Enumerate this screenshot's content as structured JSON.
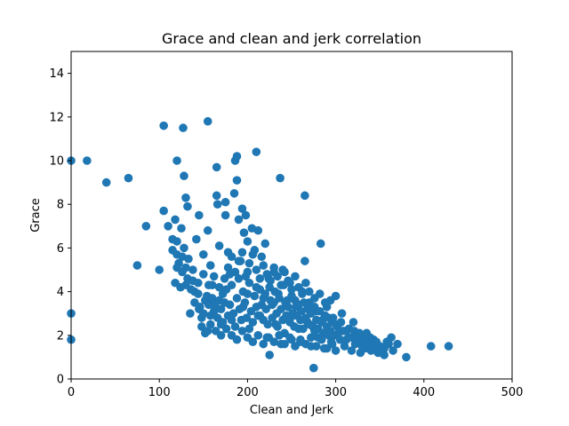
{
  "chart_data": {
    "type": "scatter",
    "title": "Grace and clean and jerk correlation",
    "xlabel": "Clean and Jerk",
    "ylabel": "Grace",
    "xlim": [
      0,
      500
    ],
    "ylim": [
      0,
      15
    ],
    "xticks": [
      0,
      100,
      200,
      300,
      400,
      500
    ],
    "yticks": [
      0,
      2,
      4,
      6,
      8,
      10,
      12,
      14
    ],
    "grid": false,
    "marker_color": "#1f77b4",
    "series": [
      {
        "points": [
          [
            0,
            10.0
          ],
          [
            0,
            3.0
          ],
          [
            0,
            1.8
          ],
          [
            18,
            10.0
          ],
          [
            40,
            9.0
          ],
          [
            65,
            9.2
          ],
          [
            75,
            5.2
          ],
          [
            85,
            7.0
          ],
          [
            100,
            5.0
          ],
          [
            105,
            11.6
          ],
          [
            105,
            7.7
          ],
          [
            110,
            7.0
          ],
          [
            115,
            6.4
          ],
          [
            115,
            5.9
          ],
          [
            118,
            7.3
          ],
          [
            120,
            10.0
          ],
          [
            120,
            6.3
          ],
          [
            120,
            5.7
          ],
          [
            122,
            5.3
          ],
          [
            125,
            6.9
          ],
          [
            127,
            11.5
          ],
          [
            128,
            9.3
          ],
          [
            130,
            8.3
          ],
          [
            132,
            7.9
          ],
          [
            118,
            4.4
          ],
          [
            124,
            4.2
          ],
          [
            126,
            4.9
          ],
          [
            128,
            6.0
          ],
          [
            130,
            5.1
          ],
          [
            133,
            5.5
          ],
          [
            135,
            3.0
          ],
          [
            138,
            4.5
          ],
          [
            140,
            4.0
          ],
          [
            142,
            6.4
          ],
          [
            145,
            7.5
          ],
          [
            145,
            3.2
          ],
          [
            148,
            2.8
          ],
          [
            150,
            5.7
          ],
          [
            152,
            3.6
          ],
          [
            155,
            11.8
          ],
          [
            155,
            6.8
          ],
          [
            155,
            2.2
          ],
          [
            158,
            5.2
          ],
          [
            160,
            4.3
          ],
          [
            162,
            3.1
          ],
          [
            165,
            9.7
          ],
          [
            165,
            8.4
          ],
          [
            166,
            8.0
          ],
          [
            168,
            6.1
          ],
          [
            170,
            2.5
          ],
          [
            172,
            3.9
          ],
          [
            175,
            8.1
          ],
          [
            175,
            7.5
          ],
          [
            178,
            5.8
          ],
          [
            180,
            4.8
          ],
          [
            182,
            2.7
          ],
          [
            185,
            8.5
          ],
          [
            186,
            10.0
          ],
          [
            188,
            10.2
          ],
          [
            188,
            9.1
          ],
          [
            190,
            7.3
          ],
          [
            192,
            5.4
          ],
          [
            194,
            7.8
          ],
          [
            195,
            3.3
          ],
          [
            196,
            6.7
          ],
          [
            198,
            7.5
          ],
          [
            200,
            6.3
          ],
          [
            200,
            4.9
          ],
          [
            202,
            2.3
          ],
          [
            205,
            6.9
          ],
          [
            208,
            5.9
          ],
          [
            210,
            10.4
          ],
          [
            210,
            4.2
          ],
          [
            212,
            6.8
          ],
          [
            214,
            2.9
          ],
          [
            216,
            5.6
          ],
          [
            218,
            3.7
          ],
          [
            220,
            6.2
          ],
          [
            222,
            1.9
          ],
          [
            224,
            4.6
          ],
          [
            225,
            1.1
          ],
          [
            228,
            3.4
          ],
          [
            230,
            4.9
          ],
          [
            232,
            2.5
          ],
          [
            235,
            3.9
          ],
          [
            237,
            9.2
          ],
          [
            238,
            1.6
          ],
          [
            240,
            5.0
          ],
          [
            242,
            2.1
          ],
          [
            245,
            3.6
          ],
          [
            248,
            4.4
          ],
          [
            250,
            1.8
          ],
          [
            252,
            2.9
          ],
          [
            255,
            3.3
          ],
          [
            258,
            2.3
          ],
          [
            260,
            1.7
          ],
          [
            262,
            4.0
          ],
          [
            265,
            8.4
          ],
          [
            265,
            5.4
          ],
          [
            268,
            2.6
          ],
          [
            270,
            3.5
          ],
          [
            272,
            1.5
          ],
          [
            275,
            0.5
          ],
          [
            276,
            2.2
          ],
          [
            278,
            3.1
          ],
          [
            280,
            1.9
          ],
          [
            283,
            6.2
          ],
          [
            285,
            2.7
          ],
          [
            287,
            1.4
          ],
          [
            290,
            3.3
          ],
          [
            292,
            2.0
          ],
          [
            295,
            1.7
          ],
          [
            297,
            2.8
          ],
          [
            300,
            3.8
          ],
          [
            300,
            1.3
          ],
          [
            302,
            2.4
          ],
          [
            305,
            1.8
          ],
          [
            307,
            3.0
          ],
          [
            310,
            1.5
          ],
          [
            312,
            2.2
          ],
          [
            315,
            1.9
          ],
          [
            318,
            1.3
          ],
          [
            320,
            2.6
          ],
          [
            322,
            1.6
          ],
          [
            325,
            2.0
          ],
          [
            328,
            1.2
          ],
          [
            330,
            1.8
          ],
          [
            333,
            1.4
          ],
          [
            335,
            2.1
          ],
          [
            338,
            1.6
          ],
          [
            340,
            1.3
          ],
          [
            343,
            1.8
          ],
          [
            345,
            1.5
          ],
          [
            348,
            1.2
          ],
          [
            352,
            1.4
          ],
          [
            355,
            1.1
          ],
          [
            360,
            1.6
          ],
          [
            363,
            1.9
          ],
          [
            365,
            1.3
          ],
          [
            370,
            1.6
          ],
          [
            380,
            1.0
          ],
          [
            408,
            1.5
          ],
          [
            428,
            1.5
          ],
          [
            130,
            4.3
          ],
          [
            136,
            4.1
          ],
          [
            140,
            3.5
          ],
          [
            144,
            3.9
          ],
          [
            146,
            3.3
          ],
          [
            150,
            3.0
          ],
          [
            154,
            3.8
          ],
          [
            156,
            3.4
          ],
          [
            158,
            2.9
          ],
          [
            160,
            3.7
          ],
          [
            163,
            3.4
          ],
          [
            166,
            2.8
          ],
          [
            168,
            3.6
          ],
          [
            170,
            3.2
          ],
          [
            172,
            2.6
          ],
          [
            174,
            3.5
          ],
          [
            176,
            4.1
          ],
          [
            178,
            2.9
          ],
          [
            180,
            3.4
          ],
          [
            182,
            4.3
          ],
          [
            184,
            3.0
          ],
          [
            186,
            2.4
          ],
          [
            188,
            3.7
          ],
          [
            190,
            4.6
          ],
          [
            191,
            3.2
          ],
          [
            193,
            2.7
          ],
          [
            195,
            4.0
          ],
          [
            197,
            3.5
          ],
          [
            199,
            2.8
          ],
          [
            200,
            3.9
          ],
          [
            202,
            4.4
          ],
          [
            204,
            3.1
          ],
          [
            206,
            2.6
          ],
          [
            208,
            3.8
          ],
          [
            210,
            3.3
          ],
          [
            212,
            2.9
          ],
          [
            214,
            4.1
          ],
          [
            216,
            3.4
          ],
          [
            218,
            2.7
          ],
          [
            220,
            3.9
          ],
          [
            221,
            3.2
          ],
          [
            223,
            2.5
          ],
          [
            225,
            4.2
          ],
          [
            226,
            3.6
          ],
          [
            228,
            2.8
          ],
          [
            230,
            3.5
          ],
          [
            231,
            4.0
          ],
          [
            233,
            3.0
          ],
          [
            234,
            2.4
          ],
          [
            236,
            3.7
          ],
          [
            238,
            3.2
          ],
          [
            240,
            2.7
          ],
          [
            241,
            4.3
          ],
          [
            243,
            3.5
          ],
          [
            244,
            2.9
          ],
          [
            246,
            3.3
          ],
          [
            248,
            2.6
          ],
          [
            250,
            3.8
          ],
          [
            251,
            3.0
          ],
          [
            253,
            2.4
          ],
          [
            254,
            3.6
          ],
          [
            256,
            2.9
          ],
          [
            258,
            3.4
          ],
          [
            260,
            2.7
          ],
          [
            261,
            3.1
          ],
          [
            263,
            2.3
          ],
          [
            264,
            3.5
          ],
          [
            266,
            2.8
          ],
          [
            268,
            3.2
          ],
          [
            270,
            2.5
          ],
          [
            272,
            3.0
          ],
          [
            274,
            2.4
          ],
          [
            276,
            3.3
          ],
          [
            278,
            2.7
          ],
          [
            280,
            2.3
          ],
          [
            282,
            3.1
          ],
          [
            284,
            2.6
          ],
          [
            286,
            2.1
          ],
          [
            288,
            2.9
          ],
          [
            290,
            2.4
          ],
          [
            292,
            2.8
          ],
          [
            294,
            2.2
          ],
          [
            296,
            2.6
          ],
          [
            298,
            2.0
          ],
          [
            300,
            2.5
          ],
          [
            303,
            2.1
          ],
          [
            306,
            2.6
          ],
          [
            309,
            2.2
          ],
          [
            312,
            1.8
          ],
          [
            315,
            2.3
          ],
          [
            318,
            1.9
          ],
          [
            321,
            2.2
          ],
          [
            324,
            1.7
          ],
          [
            327,
            2.1
          ],
          [
            330,
            1.5
          ],
          [
            333,
            1.9
          ],
          [
            336,
            1.6
          ],
          [
            339,
            1.9
          ],
          [
            342,
            1.4
          ],
          [
            346,
            1.7
          ],
          [
            350,
            1.5
          ],
          [
            355,
            1.4
          ],
          [
            358,
            1.7
          ],
          [
            148,
            2.4
          ],
          [
            152,
            2.1
          ],
          [
            158,
            2.5
          ],
          [
            164,
            2.2
          ],
          [
            170,
            2.0
          ],
          [
            176,
            2.3
          ],
          [
            182,
            2.0
          ],
          [
            188,
            1.8
          ],
          [
            194,
            2.2
          ],
          [
            200,
            1.9
          ],
          [
            206,
            1.7
          ],
          [
            212,
            2.0
          ],
          [
            218,
            1.6
          ],
          [
            224,
            1.9
          ],
          [
            230,
            1.7
          ],
          [
            236,
            2.0
          ],
          [
            242,
            1.6
          ],
          [
            248,
            1.9
          ],
          [
            254,
            1.5
          ],
          [
            260,
            1.8
          ],
          [
            266,
            1.6
          ],
          [
            272,
            1.9
          ],
          [
            278,
            1.5
          ],
          [
            284,
            1.8
          ],
          [
            290,
            1.4
          ],
          [
            296,
            1.6
          ],
          [
            178,
            5.1
          ],
          [
            182,
            5.6
          ],
          [
            186,
            4.9
          ],
          [
            190,
            5.4
          ],
          [
            194,
            5.8
          ],
          [
            198,
            4.7
          ],
          [
            202,
            5.3
          ],
          [
            206,
            5.7
          ],
          [
            210,
            5.0
          ],
          [
            214,
            4.6
          ],
          [
            218,
            5.2
          ],
          [
            222,
            4.8
          ],
          [
            226,
            4.5
          ],
          [
            230,
            5.1
          ],
          [
            234,
            4.7
          ],
          [
            238,
            4.3
          ],
          [
            242,
            4.9
          ],
          [
            246,
            4.5
          ],
          [
            250,
            4.1
          ],
          [
            254,
            4.7
          ],
          [
            258,
            4.2
          ],
          [
            262,
            3.9
          ],
          [
            266,
            4.4
          ],
          [
            270,
            4.0
          ],
          [
            276,
            3.7
          ],
          [
            282,
            3.9
          ],
          [
            288,
            3.5
          ],
          [
            294,
            3.6
          ],
          [
            120,
            5.1
          ],
          [
            126,
            5.6
          ],
          [
            132,
            4.6
          ],
          [
            138,
            5.0
          ],
          [
            144,
            4.4
          ],
          [
            150,
            4.8
          ],
          [
            156,
            4.3
          ],
          [
            162,
            4.7
          ],
          [
            168,
            4.2
          ],
          [
            174,
            4.6
          ]
        ]
      }
    ]
  }
}
